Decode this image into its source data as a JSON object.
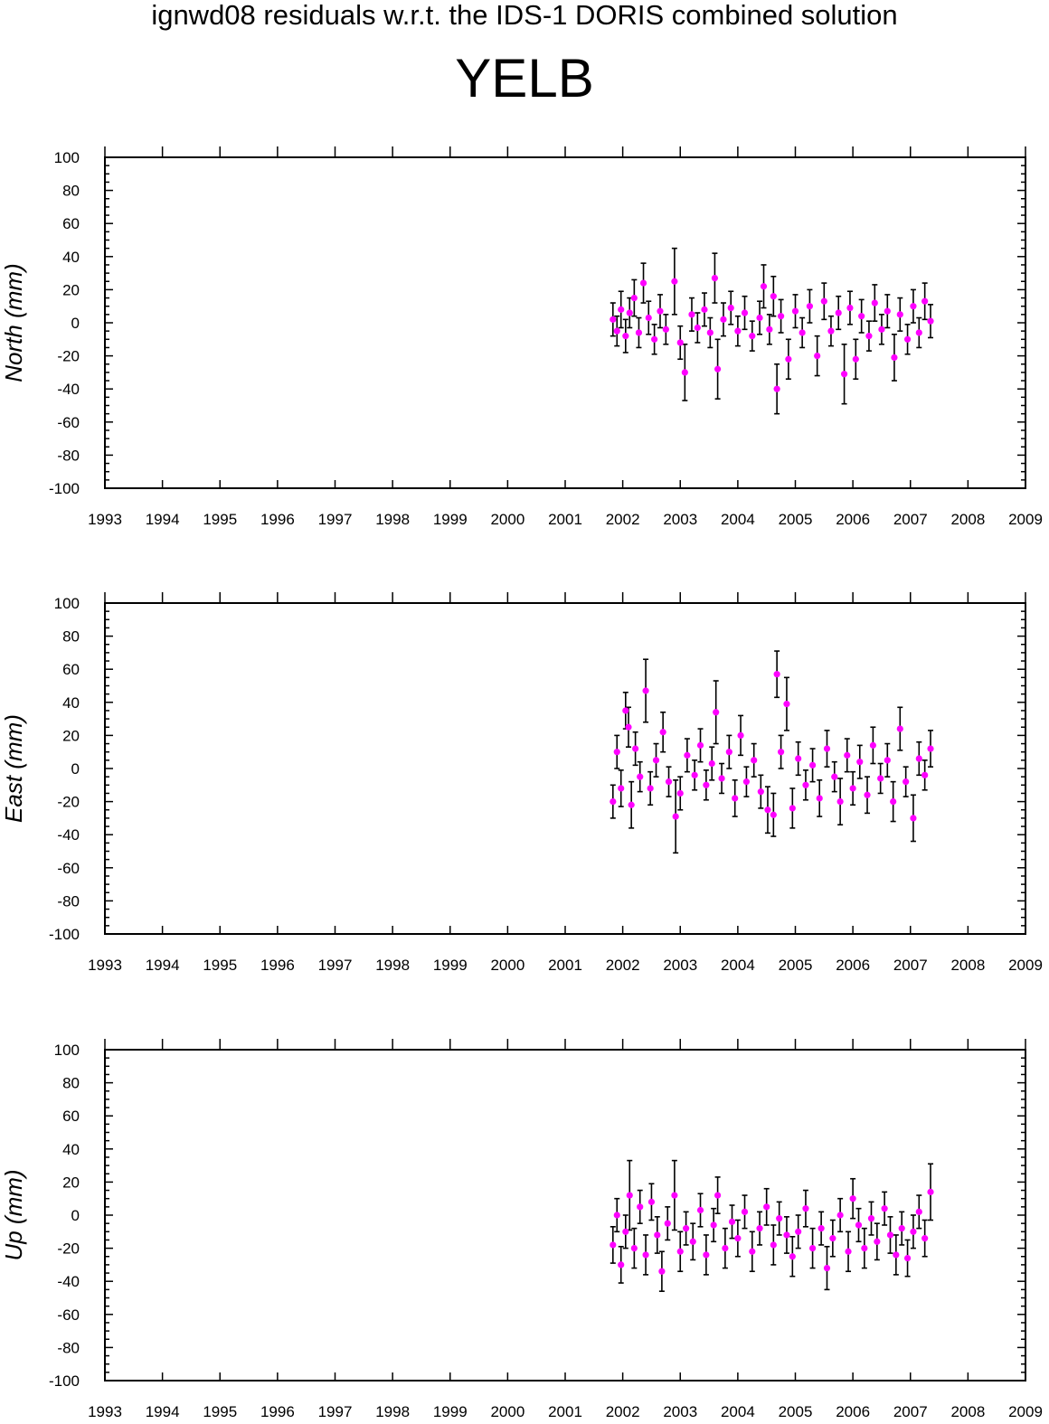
{
  "header": {
    "supertitle": "ignwd08 residuals w.r.t. the IDS-1 DORIS combined solution",
    "station": "YELB"
  },
  "colors": {
    "marker": "#ff00ff",
    "errorbar": "#000000",
    "axis": "#000000",
    "background": "#ffffff"
  },
  "chart_data": [
    {
      "type": "scatter",
      "ylabel": "North (mm)",
      "xlim": [
        1993,
        2009
      ],
      "ylim": [
        -100,
        100
      ],
      "xticks": [
        "1993",
        "1994",
        "1995",
        "1996",
        "1997",
        "1998",
        "1999",
        "2000",
        "2001",
        "2002",
        "2003",
        "2004",
        "2005",
        "2006",
        "2007",
        "2008",
        "2009"
      ],
      "yticks": [
        "100",
        "80",
        "60",
        "40",
        "20",
        "0",
        "-20",
        "-40",
        "-60",
        "-80",
        "-100"
      ],
      "grid": false,
      "series": [
        {
          "points": [
            {
              "x": 2001.83,
              "y": 2,
              "err": 10
            },
            {
              "x": 2001.9,
              "y": -5,
              "err": 9
            },
            {
              "x": 2001.97,
              "y": 8,
              "err": 11
            },
            {
              "x": 2002.05,
              "y": -8,
              "err": 10
            },
            {
              "x": 2002.12,
              "y": 6,
              "err": 9
            },
            {
              "x": 2002.2,
              "y": 15,
              "err": 11
            },
            {
              "x": 2002.28,
              "y": -6,
              "err": 9
            },
            {
              "x": 2002.36,
              "y": 24,
              "err": 12
            },
            {
              "x": 2002.45,
              "y": 3,
              "err": 10
            },
            {
              "x": 2002.55,
              "y": -10,
              "err": 9
            },
            {
              "x": 2002.65,
              "y": 7,
              "err": 10
            },
            {
              "x": 2002.75,
              "y": -4,
              "err": 9
            },
            {
              "x": 2002.9,
              "y": 25,
              "err": 20
            },
            {
              "x": 2003.0,
              "y": -12,
              "err": 10
            },
            {
              "x": 2003.08,
              "y": -30,
              "err": 17
            },
            {
              "x": 2003.2,
              "y": 5,
              "err": 10
            },
            {
              "x": 2003.3,
              "y": -3,
              "err": 9
            },
            {
              "x": 2003.42,
              "y": 8,
              "err": 10
            },
            {
              "x": 2003.52,
              "y": -6,
              "err": 9
            },
            {
              "x": 2003.6,
              "y": 27,
              "err": 15
            },
            {
              "x": 2003.65,
              "y": -28,
              "err": 18
            },
            {
              "x": 2003.75,
              "y": 2,
              "err": 10
            },
            {
              "x": 2003.88,
              "y": 9,
              "err": 10
            },
            {
              "x": 2004.0,
              "y": -5,
              "err": 9
            },
            {
              "x": 2004.12,
              "y": 6,
              "err": 10
            },
            {
              "x": 2004.25,
              "y": -8,
              "err": 9
            },
            {
              "x": 2004.38,
              "y": 3,
              "err": 10
            },
            {
              "x": 2004.45,
              "y": 22,
              "err": 13
            },
            {
              "x": 2004.55,
              "y": -4,
              "err": 9
            },
            {
              "x": 2004.62,
              "y": 16,
              "err": 12
            },
            {
              "x": 2004.68,
              "y": -40,
              "err": 15
            },
            {
              "x": 2004.75,
              "y": 4,
              "err": 10
            },
            {
              "x": 2004.88,
              "y": -22,
              "err": 12
            },
            {
              "x": 2005.0,
              "y": 7,
              "err": 10
            },
            {
              "x": 2005.12,
              "y": -6,
              "err": 9
            },
            {
              "x": 2005.25,
              "y": 10,
              "err": 10
            },
            {
              "x": 2005.38,
              "y": -20,
              "err": 12
            },
            {
              "x": 2005.5,
              "y": 13,
              "err": 11
            },
            {
              "x": 2005.62,
              "y": -5,
              "err": 9
            },
            {
              "x": 2005.75,
              "y": 6,
              "err": 10
            },
            {
              "x": 2005.85,
              "y": -31,
              "err": 18
            },
            {
              "x": 2005.95,
              "y": 9,
              "err": 10
            },
            {
              "x": 2006.05,
              "y": -22,
              "err": 12
            },
            {
              "x": 2006.15,
              "y": 4,
              "err": 10
            },
            {
              "x": 2006.28,
              "y": -8,
              "err": 9
            },
            {
              "x": 2006.38,
              "y": 12,
              "err": 11
            },
            {
              "x": 2006.5,
              "y": -4,
              "err": 9
            },
            {
              "x": 2006.6,
              "y": 7,
              "err": 10
            },
            {
              "x": 2006.72,
              "y": -21,
              "err": 14
            },
            {
              "x": 2006.82,
              "y": 5,
              "err": 10
            },
            {
              "x": 2006.95,
              "y": -10,
              "err": 9
            },
            {
              "x": 2007.05,
              "y": 10,
              "err": 10
            },
            {
              "x": 2007.15,
              "y": -6,
              "err": 9
            },
            {
              "x": 2007.25,
              "y": 13,
              "err": 11
            },
            {
              "x": 2007.35,
              "y": 1,
              "err": 10
            }
          ]
        }
      ]
    },
    {
      "type": "scatter",
      "ylabel": "East (mm)",
      "xlim": [
        1993,
        2009
      ],
      "ylim": [
        -100,
        100
      ],
      "xticks": [
        "1993",
        "1994",
        "1995",
        "1996",
        "1997",
        "1998",
        "1999",
        "2000",
        "2001",
        "2002",
        "2003",
        "2004",
        "2005",
        "2006",
        "2007",
        "2008",
        "2009"
      ],
      "yticks": [
        "100",
        "80",
        "60",
        "40",
        "20",
        "0",
        "-20",
        "-40",
        "-60",
        "-80",
        "-100"
      ],
      "grid": false,
      "series": [
        {
          "points": [
            {
              "x": 2001.83,
              "y": -20,
              "err": 10
            },
            {
              "x": 2001.9,
              "y": 10,
              "err": 10
            },
            {
              "x": 2001.97,
              "y": -12,
              "err": 11
            },
            {
              "x": 2002.05,
              "y": 35,
              "err": 11
            },
            {
              "x": 2002.1,
              "y": 25,
              "err": 12
            },
            {
              "x": 2002.15,
              "y": -22,
              "err": 14
            },
            {
              "x": 2002.22,
              "y": 12,
              "err": 10
            },
            {
              "x": 2002.3,
              "y": -5,
              "err": 9
            },
            {
              "x": 2002.4,
              "y": 47,
              "err": 19
            },
            {
              "x": 2002.48,
              "y": -12,
              "err": 10
            },
            {
              "x": 2002.58,
              "y": 5,
              "err": 10
            },
            {
              "x": 2002.7,
              "y": 22,
              "err": 12
            },
            {
              "x": 2002.8,
              "y": -8,
              "err": 9
            },
            {
              "x": 2002.92,
              "y": -29,
              "err": 22
            },
            {
              "x": 2003.0,
              "y": -15,
              "err": 10
            },
            {
              "x": 2003.12,
              "y": 8,
              "err": 10
            },
            {
              "x": 2003.25,
              "y": -4,
              "err": 9
            },
            {
              "x": 2003.35,
              "y": 14,
              "err": 10
            },
            {
              "x": 2003.45,
              "y": -10,
              "err": 9
            },
            {
              "x": 2003.55,
              "y": 3,
              "err": 10
            },
            {
              "x": 2003.62,
              "y": 34,
              "err": 19
            },
            {
              "x": 2003.72,
              "y": -6,
              "err": 9
            },
            {
              "x": 2003.85,
              "y": 10,
              "err": 10
            },
            {
              "x": 2003.95,
              "y": -18,
              "err": 11
            },
            {
              "x": 2004.05,
              "y": 20,
              "err": 12
            },
            {
              "x": 2004.15,
              "y": -8,
              "err": 9
            },
            {
              "x": 2004.28,
              "y": 5,
              "err": 10
            },
            {
              "x": 2004.4,
              "y": -14,
              "err": 10
            },
            {
              "x": 2004.52,
              "y": -25,
              "err": 14
            },
            {
              "x": 2004.62,
              "y": -28,
              "err": 13
            },
            {
              "x": 2004.68,
              "y": 57,
              "err": 14
            },
            {
              "x": 2004.75,
              "y": 10,
              "err": 10
            },
            {
              "x": 2004.85,
              "y": 39,
              "err": 16
            },
            {
              "x": 2004.95,
              "y": -24,
              "err": 12
            },
            {
              "x": 2005.05,
              "y": 6,
              "err": 10
            },
            {
              "x": 2005.18,
              "y": -10,
              "err": 9
            },
            {
              "x": 2005.3,
              "y": 2,
              "err": 10
            },
            {
              "x": 2005.42,
              "y": -18,
              "err": 11
            },
            {
              "x": 2005.55,
              "y": 12,
              "err": 11
            },
            {
              "x": 2005.68,
              "y": -5,
              "err": 9
            },
            {
              "x": 2005.78,
              "y": -20,
              "err": 14
            },
            {
              "x": 2005.9,
              "y": 8,
              "err": 10
            },
            {
              "x": 2006.0,
              "y": -12,
              "err": 10
            },
            {
              "x": 2006.12,
              "y": 4,
              "err": 10
            },
            {
              "x": 2006.25,
              "y": -16,
              "err": 11
            },
            {
              "x": 2006.35,
              "y": 14,
              "err": 11
            },
            {
              "x": 2006.48,
              "y": -6,
              "err": 9
            },
            {
              "x": 2006.6,
              "y": 5,
              "err": 10
            },
            {
              "x": 2006.7,
              "y": -20,
              "err": 12
            },
            {
              "x": 2006.82,
              "y": 24,
              "err": 13
            },
            {
              "x": 2006.92,
              "y": -8,
              "err": 9
            },
            {
              "x": 2007.05,
              "y": -30,
              "err": 14
            },
            {
              "x": 2007.15,
              "y": 6,
              "err": 10
            },
            {
              "x": 2007.25,
              "y": -4,
              "err": 9
            },
            {
              "x": 2007.35,
              "y": 12,
              "err": 11
            }
          ]
        }
      ]
    },
    {
      "type": "scatter",
      "ylabel": "Up (mm)",
      "xlim": [
        1993,
        2009
      ],
      "ylim": [
        -100,
        100
      ],
      "xticks": [
        "1993",
        "1994",
        "1995",
        "1996",
        "1997",
        "1998",
        "1999",
        "2000",
        "2001",
        "2002",
        "2003",
        "2004",
        "2005",
        "2006",
        "2007",
        "2008",
        "2009"
      ],
      "yticks": [
        "100",
        "80",
        "60",
        "40",
        "20",
        "0",
        "-20",
        "-40",
        "-60",
        "-80",
        "-100"
      ],
      "grid": false,
      "series": [
        {
          "points": [
            {
              "x": 2001.83,
              "y": -18,
              "err": 11
            },
            {
              "x": 2001.9,
              "y": 0,
              "err": 10
            },
            {
              "x": 2001.97,
              "y": -30,
              "err": 11
            },
            {
              "x": 2002.05,
              "y": -10,
              "err": 10
            },
            {
              "x": 2002.12,
              "y": 12,
              "err": 21
            },
            {
              "x": 2002.2,
              "y": -20,
              "err": 12
            },
            {
              "x": 2002.3,
              "y": 5,
              "err": 10
            },
            {
              "x": 2002.4,
              "y": -24,
              "err": 12
            },
            {
              "x": 2002.5,
              "y": 8,
              "err": 11
            },
            {
              "x": 2002.6,
              "y": -12,
              "err": 11
            },
            {
              "x": 2002.68,
              "y": -34,
              "err": 12
            },
            {
              "x": 2002.78,
              "y": -5,
              "err": 10
            },
            {
              "x": 2002.9,
              "y": 12,
              "err": 21
            },
            {
              "x": 2003.0,
              "y": -22,
              "err": 12
            },
            {
              "x": 2003.1,
              "y": -8,
              "err": 10
            },
            {
              "x": 2003.22,
              "y": -16,
              "err": 11
            },
            {
              "x": 2003.35,
              "y": 3,
              "err": 10
            },
            {
              "x": 2003.45,
              "y": -24,
              "err": 12
            },
            {
              "x": 2003.58,
              "y": -6,
              "err": 10
            },
            {
              "x": 2003.65,
              "y": 12,
              "err": 11
            },
            {
              "x": 2003.78,
              "y": -20,
              "err": 12
            },
            {
              "x": 2003.9,
              "y": -4,
              "err": 10
            },
            {
              "x": 2004.0,
              "y": -14,
              "err": 11
            },
            {
              "x": 2004.12,
              "y": 2,
              "err": 10
            },
            {
              "x": 2004.25,
              "y": -22,
              "err": 12
            },
            {
              "x": 2004.38,
              "y": -8,
              "err": 10
            },
            {
              "x": 2004.5,
              "y": 5,
              "err": 11
            },
            {
              "x": 2004.62,
              "y": -18,
              "err": 12
            },
            {
              "x": 2004.72,
              "y": -2,
              "err": 10
            },
            {
              "x": 2004.85,
              "y": -12,
              "err": 11
            },
            {
              "x": 2004.95,
              "y": -25,
              "err": 12
            },
            {
              "x": 2005.05,
              "y": -10,
              "err": 10
            },
            {
              "x": 2005.18,
              "y": 4,
              "err": 11
            },
            {
              "x": 2005.3,
              "y": -20,
              "err": 12
            },
            {
              "x": 2005.45,
              "y": -8,
              "err": 10
            },
            {
              "x": 2005.55,
              "y": -32,
              "err": 13
            },
            {
              "x": 2005.65,
              "y": -14,
              "err": 11
            },
            {
              "x": 2005.78,
              "y": 0,
              "err": 10
            },
            {
              "x": 2005.92,
              "y": -22,
              "err": 12
            },
            {
              "x": 2006.0,
              "y": 10,
              "err": 12
            },
            {
              "x": 2006.1,
              "y": -6,
              "err": 10
            },
            {
              "x": 2006.2,
              "y": -20,
              "err": 12
            },
            {
              "x": 2006.32,
              "y": -2,
              "err": 10
            },
            {
              "x": 2006.42,
              "y": -16,
              "err": 11
            },
            {
              "x": 2006.55,
              "y": 4,
              "err": 10
            },
            {
              "x": 2006.65,
              "y": -12,
              "err": 11
            },
            {
              "x": 2006.75,
              "y": -24,
              "err": 12
            },
            {
              "x": 2006.85,
              "y": -8,
              "err": 10
            },
            {
              "x": 2006.95,
              "y": -26,
              "err": 11
            },
            {
              "x": 2007.05,
              "y": -10,
              "err": 10
            },
            {
              "x": 2007.15,
              "y": 2,
              "err": 10
            },
            {
              "x": 2007.25,
              "y": -14,
              "err": 11
            },
            {
              "x": 2007.35,
              "y": 14,
              "err": 17
            }
          ]
        }
      ]
    }
  ]
}
